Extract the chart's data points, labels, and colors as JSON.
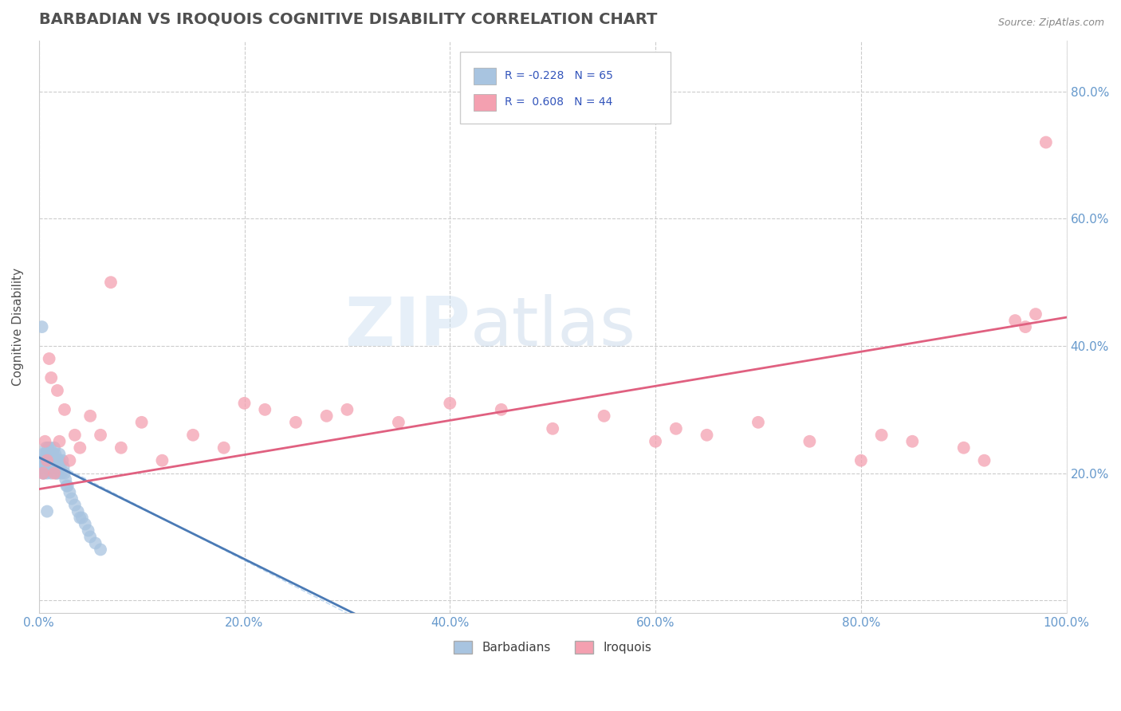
{
  "title": "BARBADIAN VS IROQUOIS COGNITIVE DISABILITY CORRELATION CHART",
  "source_text": "Source: ZipAtlas.com",
  "ylabel": "Cognitive Disability",
  "xlim": [
    0.0,
    1.0
  ],
  "ylim": [
    -0.02,
    0.88
  ],
  "yticks": [
    0.0,
    0.2,
    0.4,
    0.6,
    0.8
  ],
  "ytick_labels": [
    "",
    "20.0%",
    "40.0%",
    "60.0%",
    "80.0%"
  ],
  "xticks": [
    0.0,
    0.2,
    0.4,
    0.6,
    0.8,
    1.0
  ],
  "xtick_labels": [
    "0.0%",
    "20.0%",
    "40.0%",
    "60.0%",
    "80.0%",
    "100.0%"
  ],
  "barbadian_R": -0.228,
  "barbadian_N": 65,
  "iroquois_R": 0.608,
  "iroquois_N": 44,
  "barbadian_color": "#a8c4e0",
  "iroquois_color": "#f4a0b0",
  "barbadian_line_color": "#4a7ab5",
  "iroquois_line_color": "#e06080",
  "background_color": "#ffffff",
  "grid_color": "#cccccc",
  "title_color": "#505050",
  "title_fontsize": 14,
  "axis_label_fontsize": 11,
  "tick_label_color": "#6699cc",
  "watermark_zip": "ZIP",
  "watermark_atlas": "atlas",
  "legend_R_color": "#3355bb",
  "barbadian_x": [
    0.002,
    0.003,
    0.004,
    0.004,
    0.005,
    0.005,
    0.005,
    0.006,
    0.006,
    0.006,
    0.007,
    0.007,
    0.007,
    0.008,
    0.008,
    0.008,
    0.009,
    0.009,
    0.009,
    0.01,
    0.01,
    0.01,
    0.011,
    0.011,
    0.012,
    0.012,
    0.012,
    0.013,
    0.013,
    0.014,
    0.014,
    0.015,
    0.015,
    0.015,
    0.016,
    0.016,
    0.017,
    0.017,
    0.018,
    0.018,
    0.019,
    0.019,
    0.02,
    0.02,
    0.021,
    0.022,
    0.023,
    0.024,
    0.025,
    0.026,
    0.027,
    0.028,
    0.03,
    0.032,
    0.035,
    0.038,
    0.04,
    0.042,
    0.045,
    0.048,
    0.05,
    0.055,
    0.06,
    0.003,
    0.008
  ],
  "barbadian_y": [
    0.22,
    0.21,
    0.23,
    0.2,
    0.22,
    0.21,
    0.2,
    0.23,
    0.22,
    0.21,
    0.24,
    0.22,
    0.21,
    0.23,
    0.22,
    0.2,
    0.24,
    0.22,
    0.21,
    0.23,
    0.22,
    0.21,
    0.24,
    0.22,
    0.23,
    0.21,
    0.2,
    0.22,
    0.21,
    0.23,
    0.22,
    0.24,
    0.22,
    0.21,
    0.23,
    0.21,
    0.22,
    0.2,
    0.21,
    0.2,
    0.22,
    0.21,
    0.23,
    0.22,
    0.21,
    0.2,
    0.22,
    0.21,
    0.2,
    0.19,
    0.18,
    0.18,
    0.17,
    0.16,
    0.15,
    0.14,
    0.13,
    0.13,
    0.12,
    0.11,
    0.1,
    0.09,
    0.08,
    0.43,
    0.14
  ],
  "iroquois_x": [
    0.004,
    0.006,
    0.008,
    0.01,
    0.012,
    0.015,
    0.018,
    0.02,
    0.025,
    0.03,
    0.035,
    0.04,
    0.05,
    0.06,
    0.07,
    0.08,
    0.1,
    0.12,
    0.15,
    0.18,
    0.2,
    0.22,
    0.25,
    0.28,
    0.3,
    0.35,
    0.4,
    0.45,
    0.5,
    0.55,
    0.6,
    0.62,
    0.65,
    0.7,
    0.75,
    0.8,
    0.82,
    0.85,
    0.9,
    0.92,
    0.95,
    0.96,
    0.97,
    0.98
  ],
  "iroquois_y": [
    0.2,
    0.25,
    0.22,
    0.38,
    0.35,
    0.2,
    0.33,
    0.25,
    0.3,
    0.22,
    0.26,
    0.24,
    0.29,
    0.26,
    0.5,
    0.24,
    0.28,
    0.22,
    0.26,
    0.24,
    0.31,
    0.3,
    0.28,
    0.29,
    0.3,
    0.28,
    0.31,
    0.3,
    0.27,
    0.29,
    0.25,
    0.27,
    0.26,
    0.28,
    0.25,
    0.22,
    0.26,
    0.25,
    0.24,
    0.22,
    0.44,
    0.43,
    0.45,
    0.72
  ]
}
